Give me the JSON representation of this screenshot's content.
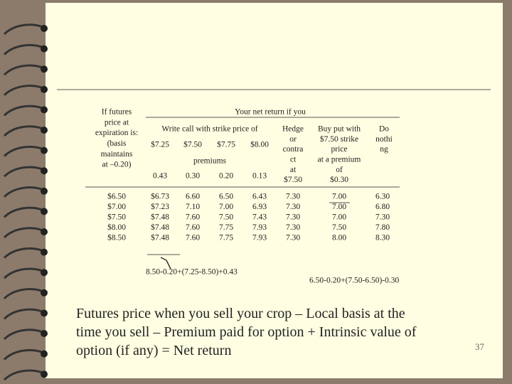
{
  "slide": {
    "left_header": [
      "If futures",
      "price at",
      "expiration is:",
      "(basis",
      "maintains",
      "at –0.20)"
    ],
    "group_header": "Your net return if you",
    "call_header": "Write call with strike price of",
    "strikes": [
      "$7.25",
      "$7.50",
      "$7.75",
      "$8.00"
    ],
    "premiums_label": "premiums",
    "premiums": [
      "0.43",
      "0.30",
      "0.20",
      "0.13"
    ],
    "hedge_header": [
      "Hedge",
      "or",
      "contra",
      "ct",
      "at",
      "$7.50"
    ],
    "put_header": [
      "Buy put with",
      "$7.50 strike",
      "price",
      "at a premium",
      "of",
      "$0.30"
    ],
    "nothing_header": [
      "Do",
      "nothi",
      "ng"
    ],
    "rows": [
      [
        "$6.50",
        "$6.73",
        "6.60",
        "6.50",
        "6.43",
        "7.30",
        "7.00",
        "6.30"
      ],
      [
        "$7.00",
        "$7.23",
        "7.10",
        "7.00",
        "6.93",
        "7.30",
        "7.00",
        "6.80"
      ],
      [
        "$7.50",
        "$7.48",
        "7.60",
        "7.50",
        "7.43",
        "7.30",
        "7.00",
        "7.30"
      ],
      [
        "$8.00",
        "$7.48",
        "7.60",
        "7.75",
        "7.93",
        "7.30",
        "7.50",
        "7.80"
      ],
      [
        "$8.50",
        "$7.48",
        "7.60",
        "7.75",
        "7.93",
        "7.30",
        "8.00",
        "8.30"
      ]
    ],
    "note_call": "8.50-0.20+(7.25-8.50)+0.43",
    "note_put": "6.50-0.20+(7.50-6.50)-0.30",
    "formula": [
      "Futures price when you sell your crop – Local basis at the",
      "time you sell – Premium paid for option + Intrinsic value of",
      "option (if any) = Net return"
    ],
    "page_number": "37"
  }
}
